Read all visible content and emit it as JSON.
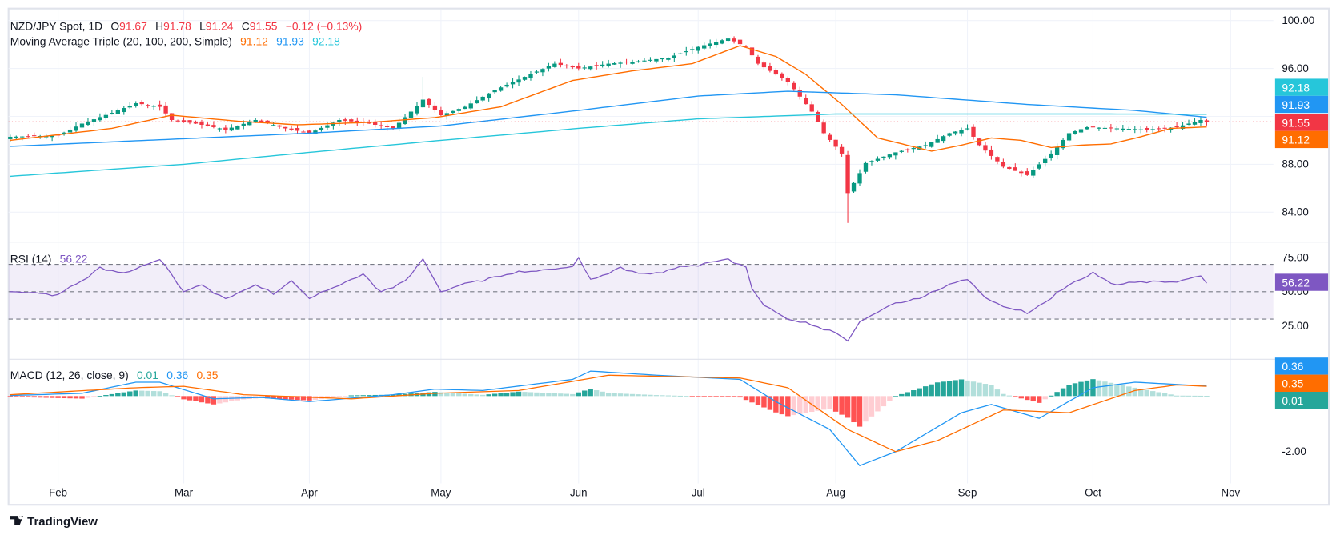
{
  "header": {
    "symbol": "NZD/JPY Spot, 1D",
    "open_label": "O",
    "open": "91.67",
    "high_label": "H",
    "high": "91.78",
    "low_label": "L",
    "low": "91.24",
    "close_label": "C",
    "close": "91.55",
    "change": "−0.12 (−0.13%)",
    "ma_title": "Moving Average Triple (20, 100, 200, Simple)",
    "ma20": "91.12",
    "ma100": "91.93",
    "ma200": "92.18"
  },
  "rsi_legend": {
    "title": "RSI (14)",
    "value": "56.22"
  },
  "macd_legend": {
    "title": "MACD (12, 26, close, 9)",
    "hist": "0.01",
    "macd": "0.36",
    "signal": "0.35"
  },
  "badges": {
    "price": [
      "92.18",
      "91.93",
      "91.55",
      "91.12"
    ],
    "rsi": "56.22",
    "macd": [
      "0.36",
      "0.35",
      "0.01"
    ]
  },
  "colors": {
    "up": "#089981",
    "down": "#f23645",
    "ma20": "#ff6d00",
    "ma100": "#2196f3",
    "ma200": "#26c6da",
    "rsi": "#7e57c2",
    "macd": "#2196f3",
    "signal": "#ff6d00",
    "hist_up": "#26a69a",
    "hist_up_weak": "#b2dfdb",
    "hist_down": "#ff5252",
    "hist_down_weak": "#ffcdd2"
  },
  "logo": "TradingView",
  "chart_data": [
    {
      "type": "candlestick",
      "title": "NZD/JPY Spot, 1D",
      "ylim": [
        82,
        101
      ],
      "y_ticks": [
        "100.00",
        "96.00",
        "88.00",
        "84.00"
      ],
      "x_ticks": [
        "Feb",
        "Mar",
        "Apr",
        "May",
        "Jun",
        "Jul",
        "Aug",
        "Sep",
        "Oct",
        "Nov"
      ],
      "last_price": 91.55,
      "close_anchors": [
        [
          "2024-01-22",
          90.3
        ],
        [
          "2024-02-01",
          90.4
        ],
        [
          "2024-02-07",
          91.4
        ],
        [
          "2024-02-14",
          92.3
        ],
        [
          "2024-02-20",
          93.1
        ],
        [
          "2024-02-26",
          92.8
        ],
        [
          "2024-02-28",
          91.7
        ],
        [
          "2024-03-05",
          91.4
        ],
        [
          "2024-03-12",
          90.9
        ],
        [
          "2024-03-19",
          91.7
        ],
        [
          "2024-03-26",
          91.0
        ],
        [
          "2024-04-01",
          90.6
        ],
        [
          "2024-04-08",
          91.7
        ],
        [
          "2024-04-15",
          91.4
        ],
        [
          "2024-04-19",
          91.0
        ],
        [
          "2024-04-24",
          92.4
        ],
        [
          "2024-04-26",
          93.4
        ],
        [
          "2024-05-01",
          92.1
        ],
        [
          "2024-05-07",
          92.8
        ],
        [
          "2024-05-14",
          94.2
        ],
        [
          "2024-05-21",
          95.3
        ],
        [
          "2024-05-28",
          96.4
        ],
        [
          "2024-06-03",
          96.0
        ],
        [
          "2024-06-10",
          96.4
        ],
        [
          "2024-06-17",
          96.6
        ],
        [
          "2024-06-24",
          96.9
        ],
        [
          "2024-07-01",
          97.8
        ],
        [
          "2024-07-08",
          98.5
        ],
        [
          "2024-07-11",
          97.8
        ],
        [
          "2024-07-15",
          96.4
        ],
        [
          "2024-07-22",
          94.9
        ],
        [
          "2024-07-26",
          92.4
        ],
        [
          "2024-07-30",
          90.6
        ],
        [
          "2024-08-02",
          88.9
        ],
        [
          "2024-08-05",
          85.6
        ],
        [
          "2024-08-08",
          88.1
        ],
        [
          "2024-08-15",
          89.0
        ],
        [
          "2024-08-22",
          89.6
        ],
        [
          "2024-08-28",
          90.6
        ],
        [
          "2024-09-02",
          91.0
        ],
        [
          "2024-09-04",
          89.6
        ],
        [
          "2024-09-10",
          87.8
        ],
        [
          "2024-09-16",
          87.1
        ],
        [
          "2024-09-20",
          88.9
        ],
        [
          "2024-09-25",
          90.6
        ],
        [
          "2024-09-30",
          91.1
        ],
        [
          "2024-10-07",
          91.0
        ],
        [
          "2024-10-14",
          90.9
        ],
        [
          "2024-10-21",
          91.1
        ],
        [
          "2024-10-25",
          91.7
        ],
        [
          "2024-10-28",
          91.55
        ]
      ],
      "wick_overrides": [
        [
          "2024-08-05",
          "low",
          83.1
        ],
        [
          "2024-04-26",
          "high",
          95.3
        ]
      ],
      "series": [
        {
          "name": "MA 20",
          "anchors": [
            [
              "2024-01-22",
              90.0
            ],
            [
              "2024-02-14",
              91.0
            ],
            [
              "2024-02-28",
              92.1
            ],
            [
              "2024-03-14",
              91.6
            ],
            [
              "2024-03-28",
              91.3
            ],
            [
              "2024-04-15",
              91.5
            ],
            [
              "2024-04-30",
              91.9
            ],
            [
              "2024-05-15",
              92.8
            ],
            [
              "2024-05-31",
              95.0
            ],
            [
              "2024-06-14",
              95.8
            ],
            [
              "2024-06-28",
              96.4
            ],
            [
              "2024-07-10",
              97.9
            ],
            [
              "2024-07-18",
              97.0
            ],
            [
              "2024-07-25",
              95.5
            ],
            [
              "2024-08-02",
              93.0
            ],
            [
              "2024-08-12",
              90.2
            ],
            [
              "2024-08-23",
              89.1
            ],
            [
              "2024-08-30",
              89.6
            ],
            [
              "2024-09-06",
              90.2
            ],
            [
              "2024-09-13",
              90.0
            ],
            [
              "2024-09-20",
              89.4
            ],
            [
              "2024-09-27",
              89.6
            ],
            [
              "2024-10-04",
              89.7
            ],
            [
              "2024-10-11",
              90.3
            ],
            [
              "2024-10-18",
              91.0
            ],
            [
              "2024-10-28",
              91.12
            ]
          ]
        },
        {
          "name": "MA 100",
          "anchors": [
            [
              "2024-01-22",
              89.5
            ],
            [
              "2024-04-01",
              90.6
            ],
            [
              "2024-05-01",
              91.2
            ],
            [
              "2024-06-01",
              92.5
            ],
            [
              "2024-07-01",
              93.7
            ],
            [
              "2024-07-20",
              94.1
            ],
            [
              "2024-08-15",
              93.8
            ],
            [
              "2024-09-15",
              93.0
            ],
            [
              "2024-10-10",
              92.5
            ],
            [
              "2024-10-28",
              91.93
            ]
          ]
        },
        {
          "name": "MA 200",
          "anchors": [
            [
              "2024-01-22",
              87.0
            ],
            [
              "2024-03-01",
              88.0
            ],
            [
              "2024-04-01",
              89.0
            ],
            [
              "2024-05-01",
              90.0
            ],
            [
              "2024-06-01",
              91.0
            ],
            [
              "2024-07-01",
              91.8
            ],
            [
              "2024-08-01",
              92.2
            ],
            [
              "2024-09-01",
              92.2
            ],
            [
              "2024-10-01",
              92.2
            ],
            [
              "2024-10-28",
              92.18
            ]
          ]
        }
      ]
    },
    {
      "type": "line",
      "title": "RSI (14)",
      "ylim": [
        12,
        86
      ],
      "y_ticks": [
        "75.00",
        "50.00",
        "25.00"
      ],
      "bands": [
        70,
        50,
        30
      ],
      "anchors": [
        [
          "2024-01-22",
          50
        ],
        [
          "2024-02-01",
          48
        ],
        [
          "2024-02-07",
          58
        ],
        [
          "2024-02-12",
          68
        ],
        [
          "2024-02-16",
          63
        ],
        [
          "2024-02-23",
          72
        ],
        [
          "2024-02-26",
          75
        ],
        [
          "2024-03-01",
          50
        ],
        [
          "2024-03-06",
          55
        ],
        [
          "2024-03-12",
          45
        ],
        [
          "2024-03-19",
          55
        ],
        [
          "2024-03-22",
          48
        ],
        [
          "2024-03-27",
          58
        ],
        [
          "2024-04-01",
          45
        ],
        [
          "2024-04-08",
          55
        ],
        [
          "2024-04-12",
          63
        ],
        [
          "2024-04-17",
          50
        ],
        [
          "2024-04-23",
          58
        ],
        [
          "2024-04-26",
          74
        ],
        [
          "2024-05-01",
          50
        ],
        [
          "2024-05-07",
          56
        ],
        [
          "2024-05-15",
          62
        ],
        [
          "2024-05-24",
          66
        ],
        [
          "2024-05-31",
          68
        ],
        [
          "2024-06-03",
          75
        ],
        [
          "2024-06-05",
          58
        ],
        [
          "2024-06-12",
          68
        ],
        [
          "2024-06-18",
          62
        ],
        [
          "2024-06-24",
          66
        ],
        [
          "2024-07-01",
          70
        ],
        [
          "2024-07-08",
          74
        ],
        [
          "2024-07-11",
          68
        ],
        [
          "2024-07-12",
          52
        ],
        [
          "2024-07-16",
          40
        ],
        [
          "2024-07-22",
          30
        ],
        [
          "2024-07-31",
          22
        ],
        [
          "2024-08-02",
          18
        ],
        [
          "2024-08-05",
          14
        ],
        [
          "2024-08-07",
          28
        ],
        [
          "2024-08-14",
          40
        ],
        [
          "2024-08-21",
          45
        ],
        [
          "2024-08-28",
          55
        ],
        [
          "2024-09-02",
          60
        ],
        [
          "2024-09-05",
          45
        ],
        [
          "2024-09-11",
          38
        ],
        [
          "2024-09-16",
          34
        ],
        [
          "2024-09-20",
          45
        ],
        [
          "2024-09-25",
          55
        ],
        [
          "2024-10-01",
          63
        ],
        [
          "2024-10-07",
          55
        ],
        [
          "2024-10-14",
          58
        ],
        [
          "2024-10-21",
          57
        ],
        [
          "2024-10-25",
          62
        ],
        [
          "2024-10-28",
          56.22
        ]
      ]
    },
    {
      "type": "line+histogram",
      "title": "MACD (12, 26, close, 9)",
      "ylim": [
        -2.9,
        1.4
      ],
      "y_ticks": [
        "-2.00"
      ],
      "series": [
        {
          "name": "MACD",
          "anchors": [
            [
              "2024-01-22",
              0.02
            ],
            [
              "2024-02-07",
              0.1
            ],
            [
              "2024-02-20",
              0.5
            ],
            [
              "2024-02-26",
              0.5
            ],
            [
              "2024-03-08",
              -0.1
            ],
            [
              "2024-03-20",
              -0.05
            ],
            [
              "2024-04-01",
              -0.2
            ],
            [
              "2024-04-19",
              0.05
            ],
            [
              "2024-04-30",
              0.25
            ],
            [
              "2024-05-10",
              0.2
            ],
            [
              "2024-05-31",
              0.6
            ],
            [
              "2024-06-05",
              0.9
            ],
            [
              "2024-06-20",
              0.75
            ],
            [
              "2024-07-10",
              0.6
            ],
            [
              "2024-07-18",
              -0.2
            ],
            [
              "2024-07-31",
              -1.2
            ],
            [
              "2024-08-07",
              -2.5
            ],
            [
              "2024-08-15",
              -2.0
            ],
            [
              "2024-08-30",
              -0.6
            ],
            [
              "2024-09-06",
              -0.3
            ],
            [
              "2024-09-18",
              -0.8
            ],
            [
              "2024-10-01",
              0.3
            ],
            [
              "2024-10-10",
              0.5
            ],
            [
              "2024-10-28",
              0.36
            ]
          ]
        },
        {
          "name": "Signal",
          "anchors": [
            [
              "2024-01-22",
              0.05
            ],
            [
              "2024-02-20",
              0.3
            ],
            [
              "2024-03-01",
              0.35
            ],
            [
              "2024-03-15",
              0.05
            ],
            [
              "2024-04-10",
              -0.1
            ],
            [
              "2024-04-30",
              0.1
            ],
            [
              "2024-05-20",
              0.2
            ],
            [
              "2024-06-10",
              0.75
            ],
            [
              "2024-07-10",
              0.65
            ],
            [
              "2024-07-20",
              0.3
            ],
            [
              "2024-08-05",
              -1.2
            ],
            [
              "2024-08-15",
              -2.0
            ],
            [
              "2024-08-25",
              -1.6
            ],
            [
              "2024-09-10",
              -0.5
            ],
            [
              "2024-09-25",
              -0.6
            ],
            [
              "2024-10-10",
              0.2
            ],
            [
              "2024-10-20",
              0.4
            ],
            [
              "2024-10-28",
              0.35
            ]
          ]
        }
      ]
    }
  ]
}
